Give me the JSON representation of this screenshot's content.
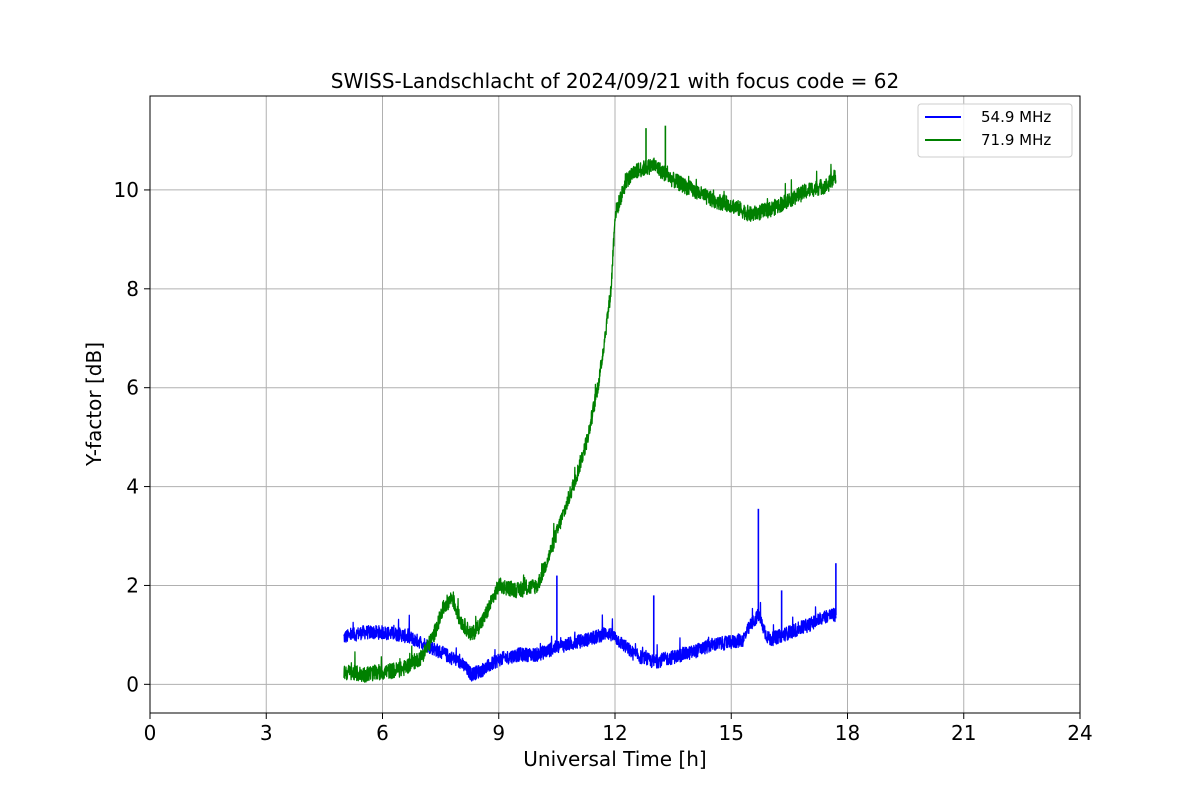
{
  "chart_data": {
    "type": "line",
    "title": "SWISS-Landschlacht of 2024/09/21 with focus code = 62",
    "xlabel": "Universal Time [h]",
    "ylabel": "Y-factor [dB]",
    "xlim": [
      0,
      24
    ],
    "ylim": [
      -0.58,
      11.9
    ],
    "xticks": [
      0,
      3,
      6,
      9,
      12,
      15,
      18,
      21,
      24
    ],
    "yticks": [
      0,
      2,
      4,
      6,
      8,
      10
    ],
    "grid": true,
    "legend_position": "top-right",
    "series": [
      {
        "name": "54.9 MHz",
        "color": "#0000ff",
        "x": [
          5.0,
          5.5,
          6.0,
          6.5,
          7.0,
          7.5,
          8.0,
          8.3,
          8.6,
          9.0,
          9.5,
          10.0,
          10.5,
          11.0,
          11.5,
          11.8,
          12.0,
          12.5,
          13.0,
          13.5,
          14.0,
          14.5,
          15.0,
          15.3,
          15.5,
          15.7,
          15.9,
          16.0,
          16.5,
          17.0,
          17.5,
          17.7
        ],
        "y": [
          0.95,
          1.05,
          1.05,
          1.0,
          0.85,
          0.65,
          0.45,
          0.2,
          0.3,
          0.5,
          0.6,
          0.6,
          0.75,
          0.85,
          0.95,
          1.05,
          0.95,
          0.6,
          0.45,
          0.55,
          0.65,
          0.8,
          0.85,
          0.9,
          1.2,
          1.4,
          1.0,
          0.9,
          1.05,
          1.2,
          1.4,
          1.4
        ],
        "spikes": [
          {
            "x": 10.5,
            "y": 2.2
          },
          {
            "x": 13.0,
            "y": 1.8
          },
          {
            "x": 15.7,
            "y": 3.55
          },
          {
            "x": 16.3,
            "y": 1.9
          },
          {
            "x": 17.7,
            "y": 2.45
          }
        ]
      },
      {
        "name": "71.9 MHz",
        "color": "#008000",
        "x": [
          5.0,
          5.5,
          6.0,
          6.5,
          7.0,
          7.3,
          7.6,
          7.8,
          8.0,
          8.3,
          8.6,
          9.0,
          9.5,
          10.0,
          10.3,
          10.6,
          11.0,
          11.3,
          11.6,
          11.9,
          12.0,
          12.3,
          12.6,
          13.0,
          13.5,
          14.0,
          14.5,
          15.0,
          15.5,
          16.0,
          16.5,
          17.0,
          17.5,
          17.7
        ],
        "y": [
          0.25,
          0.2,
          0.25,
          0.3,
          0.55,
          0.95,
          1.6,
          1.75,
          1.3,
          1.0,
          1.3,
          2.0,
          1.9,
          2.0,
          2.6,
          3.3,
          4.2,
          5.0,
          6.2,
          8.0,
          9.5,
          10.2,
          10.4,
          10.5,
          10.2,
          10.0,
          9.8,
          9.7,
          9.5,
          9.6,
          9.8,
          10.0,
          10.1,
          10.3
        ],
        "spikes": [
          {
            "x": 12.8,
            "y": 11.25
          },
          {
            "x": 13.3,
            "y": 11.3
          }
        ]
      }
    ]
  }
}
